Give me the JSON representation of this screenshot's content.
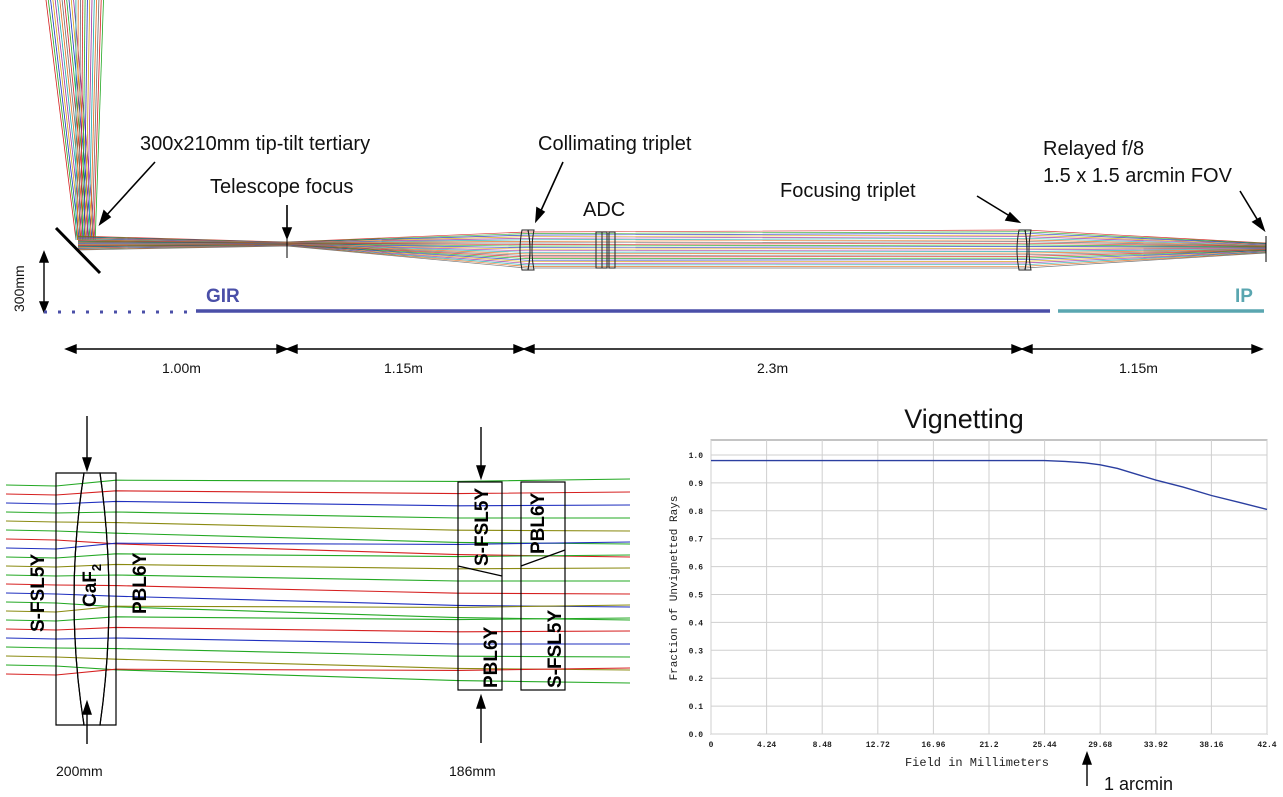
{
  "top": {
    "labels": {
      "tertiary": "300x210mm tip-tilt tertiary",
      "focus": "Telescope focus",
      "collimating": "Collimating triplet",
      "adc": "ADC",
      "focusing": "Focusing triplet",
      "relayed1": "Relayed f/8",
      "relayed2": "1.5 x 1.5 arcmin FOV",
      "scale": "300mm",
      "gir": "GIR",
      "ip": "IP"
    },
    "dimensions": [
      "1.00m",
      "1.15m",
      "2.3m",
      "1.15m"
    ],
    "colors": {
      "gir": "#4a4fa8",
      "ip": "#5aa6b0"
    }
  },
  "left_lens": {
    "glasses": {
      "left_outer": "S-FSL5Y",
      "center": "CaF",
      "center_sub": "2",
      "right_outer": "PBL6Y",
      "mid_top": "S-FSL5Y",
      "mid_bottom": "PBL6Y",
      "right_top": "PBL6Y",
      "right_bottom": "S-FSL5Y"
    },
    "aperture_a": "200mm",
    "aperture_b": "186mm"
  },
  "chart_data": {
    "type": "line",
    "title": "Vignetting",
    "xlabel": "Field in Millimeters",
    "ylabel": "Fraction of Unvignetted Rays",
    "xlim": [
      0,
      42.4
    ],
    "ylim": [
      0,
      1.0
    ],
    "xticks": [
      "0",
      "4.24",
      "8.48",
      "12.72",
      "16.96",
      "21.2",
      "25.44",
      "29.68",
      "33.92",
      "38.16",
      "42.4"
    ],
    "yticks": [
      "0.0",
      "0.1",
      "0.2",
      "0.3",
      "0.4",
      "0.5",
      "0.6",
      "0.7",
      "0.8",
      "0.9",
      "1.0"
    ],
    "grid": true,
    "series": [
      {
        "color": "#2b3fa0",
        "x": [
          0,
          4.24,
          8.48,
          12.72,
          16.96,
          21.2,
          25.44,
          27.0,
          28.5,
          29.68,
          31.0,
          33.92,
          36.0,
          38.16,
          40.3,
          42.4
        ],
        "y": [
          0.98,
          0.98,
          0.98,
          0.98,
          0.98,
          0.98,
          0.98,
          0.977,
          0.972,
          0.965,
          0.952,
          0.91,
          0.885,
          0.855,
          0.83,
          0.805
        ]
      }
    ],
    "annotation": "1 arcmin",
    "annotation_x": 29.68
  }
}
